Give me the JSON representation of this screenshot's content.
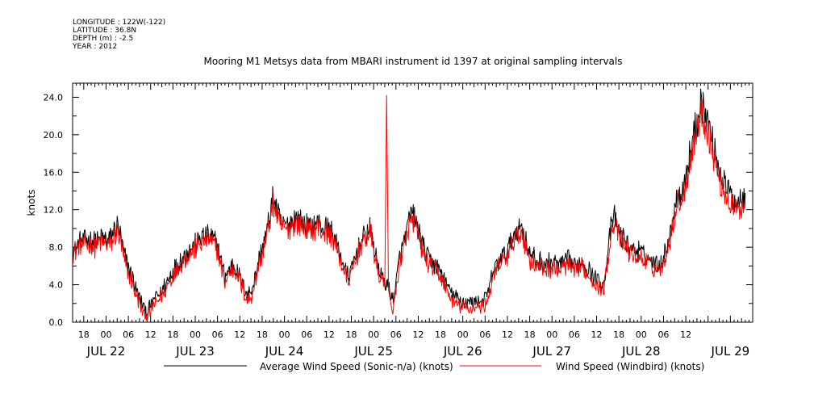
{
  "meta": {
    "longitude": "LONGITUDE : 122W(-122)",
    "latitude": "LATITUDE : 36.8N",
    "depth": "DEPTH (m) : -2.5",
    "year": "YEAR : 2012"
  },
  "chart_data": {
    "type": "line",
    "title": "Mooring M1 Metsys data from MBARI instrument id 1397 at original sampling intervals",
    "ylabel": "knots",
    "xlabel": "",
    "ylim": [
      0,
      25.5
    ],
    "xlim_hours": [
      -9,
      174
    ],
    "yticks": [
      "0.0",
      "4.0",
      "8.0",
      "12.0",
      "16.0",
      "20.0",
      "24.0"
    ],
    "x_hour_ticks": [
      "18",
      "00",
      "06",
      "12",
      "18",
      "00",
      "06",
      "12",
      "18",
      "00",
      "06",
      "12",
      "18",
      "00",
      "06",
      "12",
      "18",
      "00",
      "06",
      "12",
      "18",
      "00",
      "06",
      "12",
      "18",
      "00",
      "06",
      "12"
    ],
    "date_labels": [
      "JUL 22",
      "JUL 23",
      "JUL 24",
      "JUL 25",
      "JUL 26",
      "JUL 27",
      "JUL 28",
      "JUL 29"
    ],
    "series": [
      {
        "name": "Average Wind Speed (Sonic-n/a) (knots)",
        "color": "#000000",
        "points": [
          [
            -9,
            7.5
          ],
          [
            -7,
            8.6
          ],
          [
            -5,
            8.8
          ],
          [
            -3,
            8.6
          ],
          [
            -1,
            9.0
          ],
          [
            1,
            8.7
          ],
          [
            2,
            9.6
          ],
          [
            3,
            10.6
          ],
          [
            4,
            9.0
          ],
          [
            5,
            7.0
          ],
          [
            6,
            5.9
          ],
          [
            7,
            4.9
          ],
          [
            8,
            3.6
          ],
          [
            9,
            2.6
          ],
          [
            10,
            1.6
          ],
          [
            11,
            1.1
          ],
          [
            12,
            1.7
          ],
          [
            13,
            2.5
          ],
          [
            14,
            2.9
          ],
          [
            16,
            4.0
          ],
          [
            18,
            5.6
          ],
          [
            20,
            6.6
          ],
          [
            22,
            7.6
          ],
          [
            24,
            8.4
          ],
          [
            26,
            9.1
          ],
          [
            28,
            9.2
          ],
          [
            30,
            8.2
          ],
          [
            31,
            6.4
          ],
          [
            32,
            4.8
          ],
          [
            33,
            5.6
          ],
          [
            34,
            6.2
          ],
          [
            35,
            5.8
          ],
          [
            36,
            4.8
          ],
          [
            37,
            3.8
          ],
          [
            38,
            3.0
          ],
          [
            39,
            3.2
          ],
          [
            40,
            4.6
          ],
          [
            41,
            6.5
          ],
          [
            42,
            7.8
          ],
          [
            43,
            9.2
          ],
          [
            44,
            11.2
          ],
          [
            45,
            13.6
          ],
          [
            46,
            11.8
          ],
          [
            47,
            10.6
          ],
          [
            49,
            10.4
          ],
          [
            51,
            11.2
          ],
          [
            53,
            10.6
          ],
          [
            55,
            10.2
          ],
          [
            57,
            10.7
          ],
          [
            59,
            10.0
          ],
          [
            61,
            9.6
          ],
          [
            62,
            8.4
          ],
          [
            63,
            7.2
          ],
          [
            64,
            6.0
          ],
          [
            65,
            5.0
          ],
          [
            66,
            5.6
          ],
          [
            67,
            6.8
          ],
          [
            68,
            8.2
          ],
          [
            69,
            8.8
          ],
          [
            70,
            9.4
          ],
          [
            71,
            10.2
          ],
          [
            72,
            8.2
          ],
          [
            73,
            6.2
          ],
          [
            74,
            5.0
          ],
          [
            75,
            4.2
          ],
          [
            76,
            4.0
          ],
          [
            77,
            2.2
          ],
          [
            78,
            3.8
          ],
          [
            79,
            7.2
          ],
          [
            80,
            8.2
          ],
          [
            81,
            9.8
          ],
          [
            82,
            11.6
          ],
          [
            83,
            11.2
          ],
          [
            84,
            9.8
          ],
          [
            86,
            7.2
          ],
          [
            88,
            6.4
          ],
          [
            90,
            5.4
          ],
          [
            92,
            3.8
          ],
          [
            94,
            2.6
          ],
          [
            96,
            2.2
          ],
          [
            98,
            2.1
          ],
          [
            100,
            2.2
          ],
          [
            102,
            2.4
          ],
          [
            103,
            3.4
          ],
          [
            104,
            5.2
          ],
          [
            106,
            6.8
          ],
          [
            108,
            7.6
          ],
          [
            110,
            9.6
          ],
          [
            112,
            10.2
          ],
          [
            114,
            7.2
          ],
          [
            116,
            6.6
          ],
          [
            118,
            6.2
          ],
          [
            120,
            6.4
          ],
          [
            122,
            6.1
          ],
          [
            124,
            6.7
          ],
          [
            126,
            5.9
          ],
          [
            128,
            6.6
          ],
          [
            130,
            5.6
          ],
          [
            132,
            4.6
          ],
          [
            134,
            4.1
          ],
          [
            135,
            7.4
          ],
          [
            136,
            10.4
          ],
          [
            137,
            11.2
          ],
          [
            138,
            9.6
          ],
          [
            140,
            8.4
          ],
          [
            142,
            7.8
          ],
          [
            144,
            7.4
          ],
          [
            146,
            6.8
          ],
          [
            148,
            6.2
          ],
          [
            150,
            6.6
          ],
          [
            151,
            8.6
          ],
          [
            152,
            9.6
          ],
          [
            153,
            12.4
          ],
          [
            154,
            14.0
          ],
          [
            155,
            13.8
          ],
          [
            156,
            15.6
          ],
          [
            157,
            17.6
          ],
          [
            158,
            19.8
          ],
          [
            159,
            21.4
          ],
          [
            160,
            23.4
          ],
          [
            161,
            22.6
          ],
          [
            162,
            21.4
          ],
          [
            163,
            19.6
          ],
          [
            164,
            17.8
          ],
          [
            165,
            16.4
          ],
          [
            166,
            15.0
          ],
          [
            167,
            14.4
          ],
          [
            168,
            13.6
          ],
          [
            169,
            13.2
          ],
          [
            170,
            12.8
          ],
          [
            171,
            13.4
          ],
          [
            172,
            13.8
          ]
        ]
      },
      {
        "name": "Wind Speed (Windbird) (knots)",
        "color": "#ff0000",
        "points": [
          [
            -9,
            7.1
          ],
          [
            -7,
            8.2
          ],
          [
            -5,
            8.3
          ],
          [
            -3,
            8.1
          ],
          [
            -1,
            8.5
          ],
          [
            1,
            8.2
          ],
          [
            2,
            8.9
          ],
          [
            3,
            9.6
          ],
          [
            4,
            8.4
          ],
          [
            5,
            6.3
          ],
          [
            6,
            5.2
          ],
          [
            7,
            4.2
          ],
          [
            8,
            3.0
          ],
          [
            9,
            2.0
          ],
          [
            10,
            0.9
          ],
          [
            11,
            0.6
          ],
          [
            12,
            1.2
          ],
          [
            13,
            1.9
          ],
          [
            14,
            2.3
          ],
          [
            16,
            3.4
          ],
          [
            18,
            5.0
          ],
          [
            20,
            6.1
          ],
          [
            22,
            7.1
          ],
          [
            24,
            7.9
          ],
          [
            26,
            8.6
          ],
          [
            28,
            8.7
          ],
          [
            30,
            7.7
          ],
          [
            31,
            5.9
          ],
          [
            32,
            4.3
          ],
          [
            33,
            5.1
          ],
          [
            34,
            5.7
          ],
          [
            35,
            5.3
          ],
          [
            36,
            4.3
          ],
          [
            37,
            3.3
          ],
          [
            38,
            2.4
          ],
          [
            39,
            2.6
          ],
          [
            40,
            4.0
          ],
          [
            41,
            6.0
          ],
          [
            42,
            7.3
          ],
          [
            43,
            8.7
          ],
          [
            44,
            10.7
          ],
          [
            45,
            12.8
          ],
          [
            46,
            11.2
          ],
          [
            47,
            10.1
          ],
          [
            49,
            9.9
          ],
          [
            51,
            10.7
          ],
          [
            53,
            10.1
          ],
          [
            55,
            9.7
          ],
          [
            57,
            10.2
          ],
          [
            59,
            9.5
          ],
          [
            61,
            9.1
          ],
          [
            62,
            7.9
          ],
          [
            63,
            6.7
          ],
          [
            64,
            5.5
          ],
          [
            65,
            4.5
          ],
          [
            66,
            5.1
          ],
          [
            67,
            6.3
          ],
          [
            68,
            7.7
          ],
          [
            69,
            8.3
          ],
          [
            70,
            8.9
          ],
          [
            71,
            9.7
          ],
          [
            72,
            7.7
          ],
          [
            73,
            5.7
          ],
          [
            74,
            4.5
          ],
          [
            75,
            3.7
          ],
          [
            75.5,
            24.2
          ],
          [
            76,
            3.5
          ],
          [
            77,
            1.4
          ],
          [
            78,
            3.2
          ],
          [
            79,
            6.6
          ],
          [
            80,
            7.6
          ],
          [
            81,
            9.2
          ],
          [
            82,
            11.0
          ],
          [
            83,
            10.6
          ],
          [
            84,
            9.2
          ],
          [
            86,
            6.6
          ],
          [
            88,
            5.8
          ],
          [
            90,
            4.8
          ],
          [
            92,
            3.2
          ],
          [
            94,
            2.0
          ],
          [
            96,
            1.6
          ],
          [
            98,
            1.5
          ],
          [
            100,
            1.6
          ],
          [
            102,
            1.8
          ],
          [
            103,
            2.8
          ],
          [
            104,
            4.6
          ],
          [
            106,
            6.2
          ],
          [
            108,
            7.0
          ],
          [
            110,
            9.0
          ],
          [
            112,
            9.6
          ],
          [
            114,
            6.6
          ],
          [
            116,
            6.0
          ],
          [
            118,
            5.6
          ],
          [
            120,
            5.8
          ],
          [
            122,
            5.5
          ],
          [
            124,
            6.1
          ],
          [
            126,
            5.3
          ],
          [
            128,
            6.0
          ],
          [
            130,
            5.0
          ],
          [
            132,
            4.0
          ],
          [
            134,
            3.5
          ],
          [
            135,
            6.8
          ],
          [
            136,
            9.8
          ],
          [
            137,
            10.6
          ],
          [
            138,
            9.0
          ],
          [
            140,
            7.8
          ],
          [
            142,
            7.2
          ],
          [
            144,
            6.8
          ],
          [
            146,
            6.2
          ],
          [
            148,
            5.6
          ],
          [
            150,
            6.0
          ],
          [
            151,
            8.0
          ],
          [
            152,
            9.0
          ],
          [
            153,
            11.6
          ],
          [
            154,
            13.2
          ],
          [
            155,
            13.0
          ],
          [
            156,
            14.8
          ],
          [
            157,
            16.8
          ],
          [
            158,
            19.0
          ],
          [
            159,
            20.6
          ],
          [
            160,
            22.4
          ],
          [
            161,
            21.6
          ],
          [
            162,
            20.4
          ],
          [
            163,
            18.6
          ],
          [
            164,
            16.8
          ],
          [
            165,
            15.4
          ],
          [
            166,
            14.0
          ],
          [
            167,
            13.4
          ],
          [
            168,
            12.6
          ],
          [
            169,
            12.2
          ],
          [
            170,
            11.8
          ],
          [
            171,
            12.4
          ],
          [
            172,
            12.8
          ]
        ]
      }
    ],
    "grid": false,
    "legend": "bottom"
  }
}
